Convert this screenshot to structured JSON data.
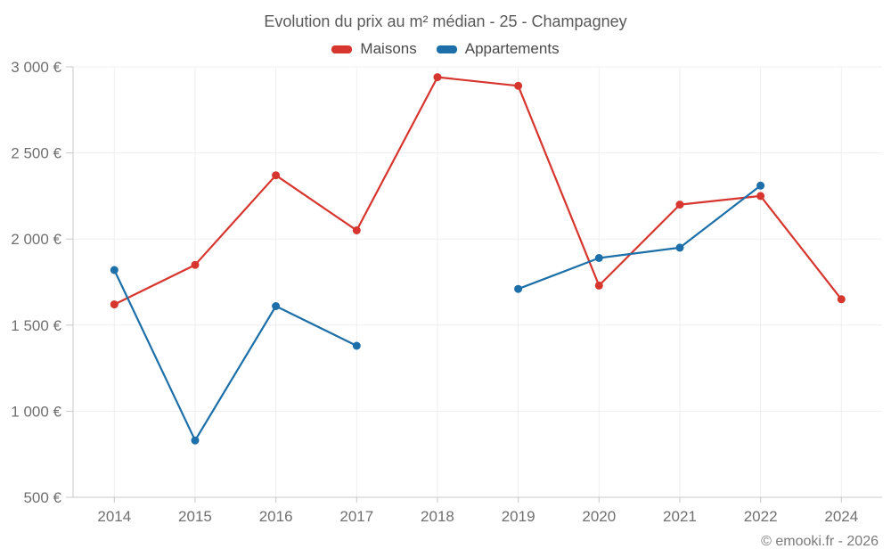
{
  "page": {
    "footer": "© emooki.fr - 2026"
  },
  "chart": {
    "title": "Evolution du prix au m² médian - 25 - Champagney"
  },
  "chart_data": {
    "type": "line",
    "title": "Evolution du prix au m² médian - 25 - Champagney",
    "categories": [
      "2014",
      "2015",
      "2016",
      "2017",
      "2018",
      "2019",
      "2020",
      "2021",
      "2022",
      "2024"
    ],
    "series": [
      {
        "name": "Maisons",
        "color": "#d6362e",
        "values": [
          1620,
          1850,
          2370,
          2050,
          2940,
          2890,
          1730,
          2200,
          2250,
          1650
        ]
      },
      {
        "name": "Appartements",
        "color": "#1c6fa8",
        "values": [
          1820,
          830,
          1610,
          1380,
          null,
          1710,
          1890,
          1950,
          2310,
          null
        ]
      }
    ],
    "ylim": [
      500,
      3000
    ],
    "yticks": [
      {
        "value": 500,
        "label": "500 €"
      },
      {
        "value": 1000,
        "label": "1 000 €"
      },
      {
        "value": 1500,
        "label": "1 500 €"
      },
      {
        "value": 2000,
        "label": "2 000 €"
      },
      {
        "value": 2500,
        "label": "2 500 €"
      },
      {
        "value": 3000,
        "label": "3 000 €"
      }
    ],
    "grid": true,
    "legend_position": "top",
    "unit": "€"
  }
}
